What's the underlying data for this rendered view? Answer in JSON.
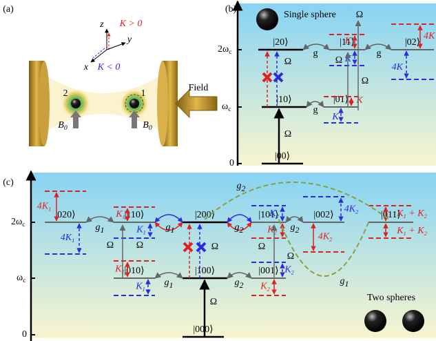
{
  "panel_a": {
    "label": "(a)",
    "axis_z": "z",
    "axis_y": "y",
    "axis_x": "x",
    "k_pos": "K > 0",
    "k_neg": "K < 0",
    "sphere_2": "2",
    "sphere_1": "1",
    "b_main": "B",
    "b_sub": "0",
    "field": "Field"
  },
  "panel_b": {
    "label": "(b)",
    "title": "Single sphere",
    "levels": [
      {
        "main": "2ω",
        "sub": "c"
      },
      {
        "main": "ω",
        "sub": "c"
      },
      {
        "main": "0"
      }
    ],
    "states": [
      "|20⟩",
      "|11⟩",
      "|02⟩",
      "|10⟩",
      "|01⟩",
      "|00⟩"
    ],
    "coupling": "g",
    "drive": "Ω",
    "shift": "K",
    "shift_4": "4K"
  },
  "panel_c": {
    "label": "(c)",
    "title": "Two spheres",
    "levels": [
      {
        "main": "2ω",
        "sub": "c"
      },
      {
        "main": "ω",
        "sub": "c"
      },
      {
        "main": "0"
      }
    ],
    "states": [
      "|020⟩",
      "|110⟩",
      "|200⟩",
      "|101⟩",
      "|002⟩",
      "|011⟩",
      "|010⟩",
      "|100⟩",
      "|001⟩",
      "|000⟩"
    ],
    "g": "g",
    "one": "1",
    "two": "2",
    "drive": "Ω",
    "k": "K",
    "four_k": "4K",
    "plus": " + "
  }
}
